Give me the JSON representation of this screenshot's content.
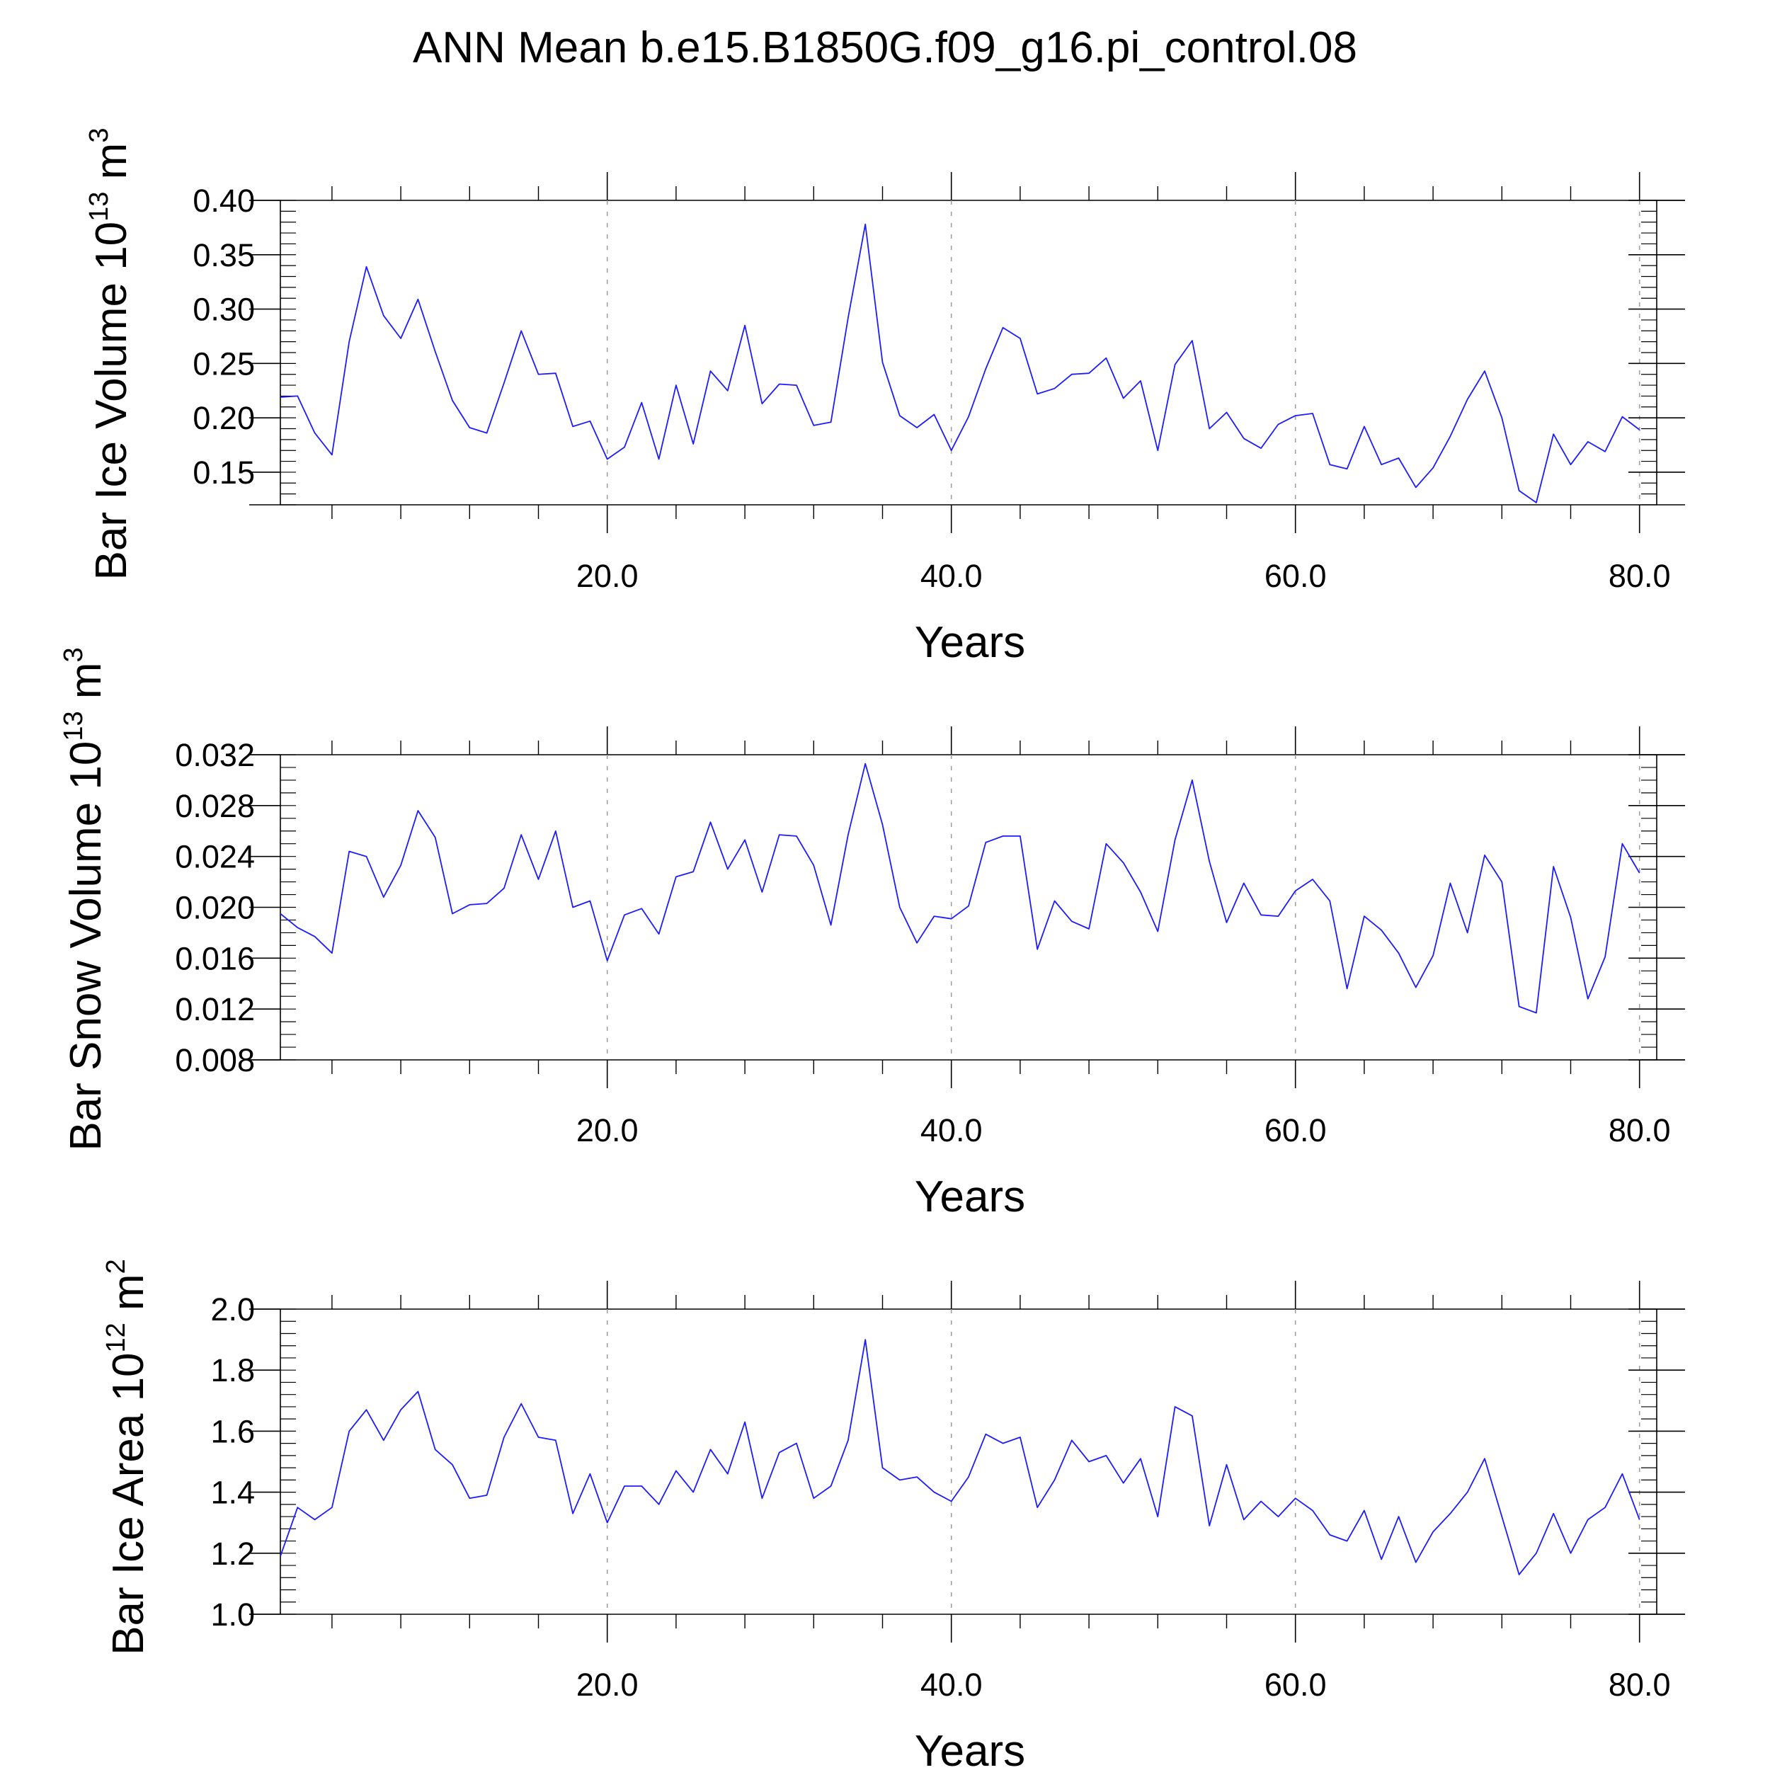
{
  "title": "ANN Mean b.e15.B1850G.f09_g16.pi_control.08",
  "colors": {
    "line": "#1c1cff",
    "grid": "#a0a0a0",
    "axis": "#000000"
  },
  "chart_data": [
    {
      "type": "line",
      "ylabel": {
        "main": "Bar Ice Volume 10",
        "exp": "13",
        "unit": " m",
        "unit_exp": "3"
      },
      "xlabel": "Years",
      "xlim": [
        1,
        81
      ],
      "ylim": [
        0.12,
        0.4
      ],
      "yticks": [
        0.15,
        0.2,
        0.25,
        0.3,
        0.35,
        0.4
      ],
      "ytick_labels": [
        "0.15",
        "0.20",
        "0.25",
        "0.30",
        "0.35",
        "0.40"
      ],
      "yminor_step": 0.01,
      "xticks": [
        20,
        40,
        60,
        80
      ],
      "xtick_labels": [
        "20.0",
        "40.0",
        "60.0",
        "80.0"
      ],
      "xminor_step": 4,
      "grid": "vertical dashed at major x ticks",
      "series": [
        {
          "values": [
            0.219,
            0.22,
            0.186,
            0.166,
            0.27,
            0.339,
            0.294,
            0.273,
            0.309,
            0.261,
            0.216,
            0.191,
            0.186,
            0.232,
            0.28,
            0.24,
            0.241,
            0.192,
            0.197,
            0.162,
            0.173,
            0.214,
            0.162,
            0.23,
            0.176,
            0.243,
            0.225,
            0.285,
            0.213,
            0.231,
            0.23,
            0.193,
            0.196,
            0.292,
            0.378,
            0.251,
            0.202,
            0.191,
            0.203,
            0.17,
            0.201,
            0.245,
            0.283,
            0.273,
            0.222,
            0.227,
            0.24,
            0.241,
            0.255,
            0.218,
            0.234,
            0.17,
            0.249,
            0.271,
            0.19,
            0.205,
            0.181,
            0.172,
            0.194,
            0.202,
            0.204,
            0.157,
            0.153,
            0.192,
            0.157,
            0.163,
            0.136,
            0.154,
            0.183,
            0.217,
            0.243,
            0.2,
            0.133,
            0.122,
            0.185,
            0.157,
            0.178,
            0.169,
            0.201,
            0.189
          ]
        }
      ]
    },
    {
      "type": "line",
      "ylabel": {
        "main": "Bar Snow Volume 10",
        "exp": "13",
        "unit": " m",
        "unit_exp": "3"
      },
      "xlabel": "Years",
      "xlim": [
        1,
        81
      ],
      "ylim": [
        0.008,
        0.032
      ],
      "yticks": [
        0.008,
        0.012,
        0.016,
        0.02,
        0.024,
        0.028,
        0.032
      ],
      "ytick_labels": [
        "0.008",
        "0.012",
        "0.016",
        "0.020",
        "0.024",
        "0.028",
        "0.032"
      ],
      "yminor_step": 0.001,
      "xticks": [
        20,
        40,
        60,
        80
      ],
      "xtick_labels": [
        "20.0",
        "40.0",
        "60.0",
        "80.0"
      ],
      "xminor_step": 4,
      "grid": "vertical dashed at major x ticks",
      "series": [
        {
          "values": [
            0.0195,
            0.0184,
            0.0177,
            0.0164,
            0.0244,
            0.024,
            0.0208,
            0.0233,
            0.0276,
            0.0255,
            0.0195,
            0.0202,
            0.0203,
            0.0215,
            0.0257,
            0.0222,
            0.026,
            0.02,
            0.0205,
            0.0158,
            0.0194,
            0.0199,
            0.0179,
            0.0224,
            0.0228,
            0.0267,
            0.023,
            0.0253,
            0.0212,
            0.0257,
            0.0256,
            0.0233,
            0.0186,
            0.0257,
            0.0313,
            0.0265,
            0.02,
            0.0172,
            0.0193,
            0.0191,
            0.0201,
            0.0251,
            0.0256,
            0.0256,
            0.0167,
            0.0205,
            0.0189,
            0.0183,
            0.025,
            0.0235,
            0.0212,
            0.0181,
            0.0253,
            0.03,
            0.0236,
            0.0188,
            0.0219,
            0.0194,
            0.0193,
            0.0213,
            0.0222,
            0.0205,
            0.0136,
            0.0193,
            0.0182,
            0.0164,
            0.0137,
            0.0162,
            0.0219,
            0.018,
            0.0241,
            0.022,
            0.0122,
            0.0117,
            0.0232,
            0.0192,
            0.0128,
            0.0161,
            0.025,
            0.0227
          ]
        }
      ]
    },
    {
      "type": "line",
      "ylabel": {
        "main": "Bar Ice Area 10",
        "exp": "12",
        "unit": " m",
        "unit_exp": "2"
      },
      "xlabel": "Years",
      "xlim": [
        1,
        81
      ],
      "ylim": [
        1.0,
        2.0
      ],
      "yticks": [
        1.0,
        1.2,
        1.4,
        1.6,
        1.8,
        2.0
      ],
      "ytick_labels": [
        "1.0",
        "1.2",
        "1.4",
        "1.6",
        "1.8",
        "2.0"
      ],
      "yminor_step": 0.04,
      "xticks": [
        20,
        40,
        60,
        80
      ],
      "xtick_labels": [
        "20.0",
        "40.0",
        "60.0",
        "80.0"
      ],
      "xminor_step": 4,
      "grid": "vertical dashed at major x ticks",
      "series": [
        {
          "values": [
            1.19,
            1.35,
            1.31,
            1.35,
            1.6,
            1.67,
            1.57,
            1.67,
            1.73,
            1.54,
            1.49,
            1.38,
            1.39,
            1.58,
            1.69,
            1.58,
            1.57,
            1.33,
            1.46,
            1.3,
            1.42,
            1.42,
            1.36,
            1.47,
            1.4,
            1.54,
            1.46,
            1.63,
            1.38,
            1.53,
            1.56,
            1.38,
            1.42,
            1.57,
            1.9,
            1.48,
            1.44,
            1.45,
            1.4,
            1.37,
            1.45,
            1.59,
            1.56,
            1.58,
            1.35,
            1.44,
            1.57,
            1.5,
            1.52,
            1.43,
            1.51,
            1.32,
            1.68,
            1.65,
            1.29,
            1.49,
            1.31,
            1.37,
            1.32,
            1.38,
            1.34,
            1.26,
            1.24,
            1.34,
            1.18,
            1.32,
            1.17,
            1.27,
            1.33,
            1.4,
            1.51,
            1.32,
            1.13,
            1.2,
            1.33,
            1.2,
            1.31,
            1.35,
            1.46,
            1.31
          ]
        }
      ]
    }
  ]
}
